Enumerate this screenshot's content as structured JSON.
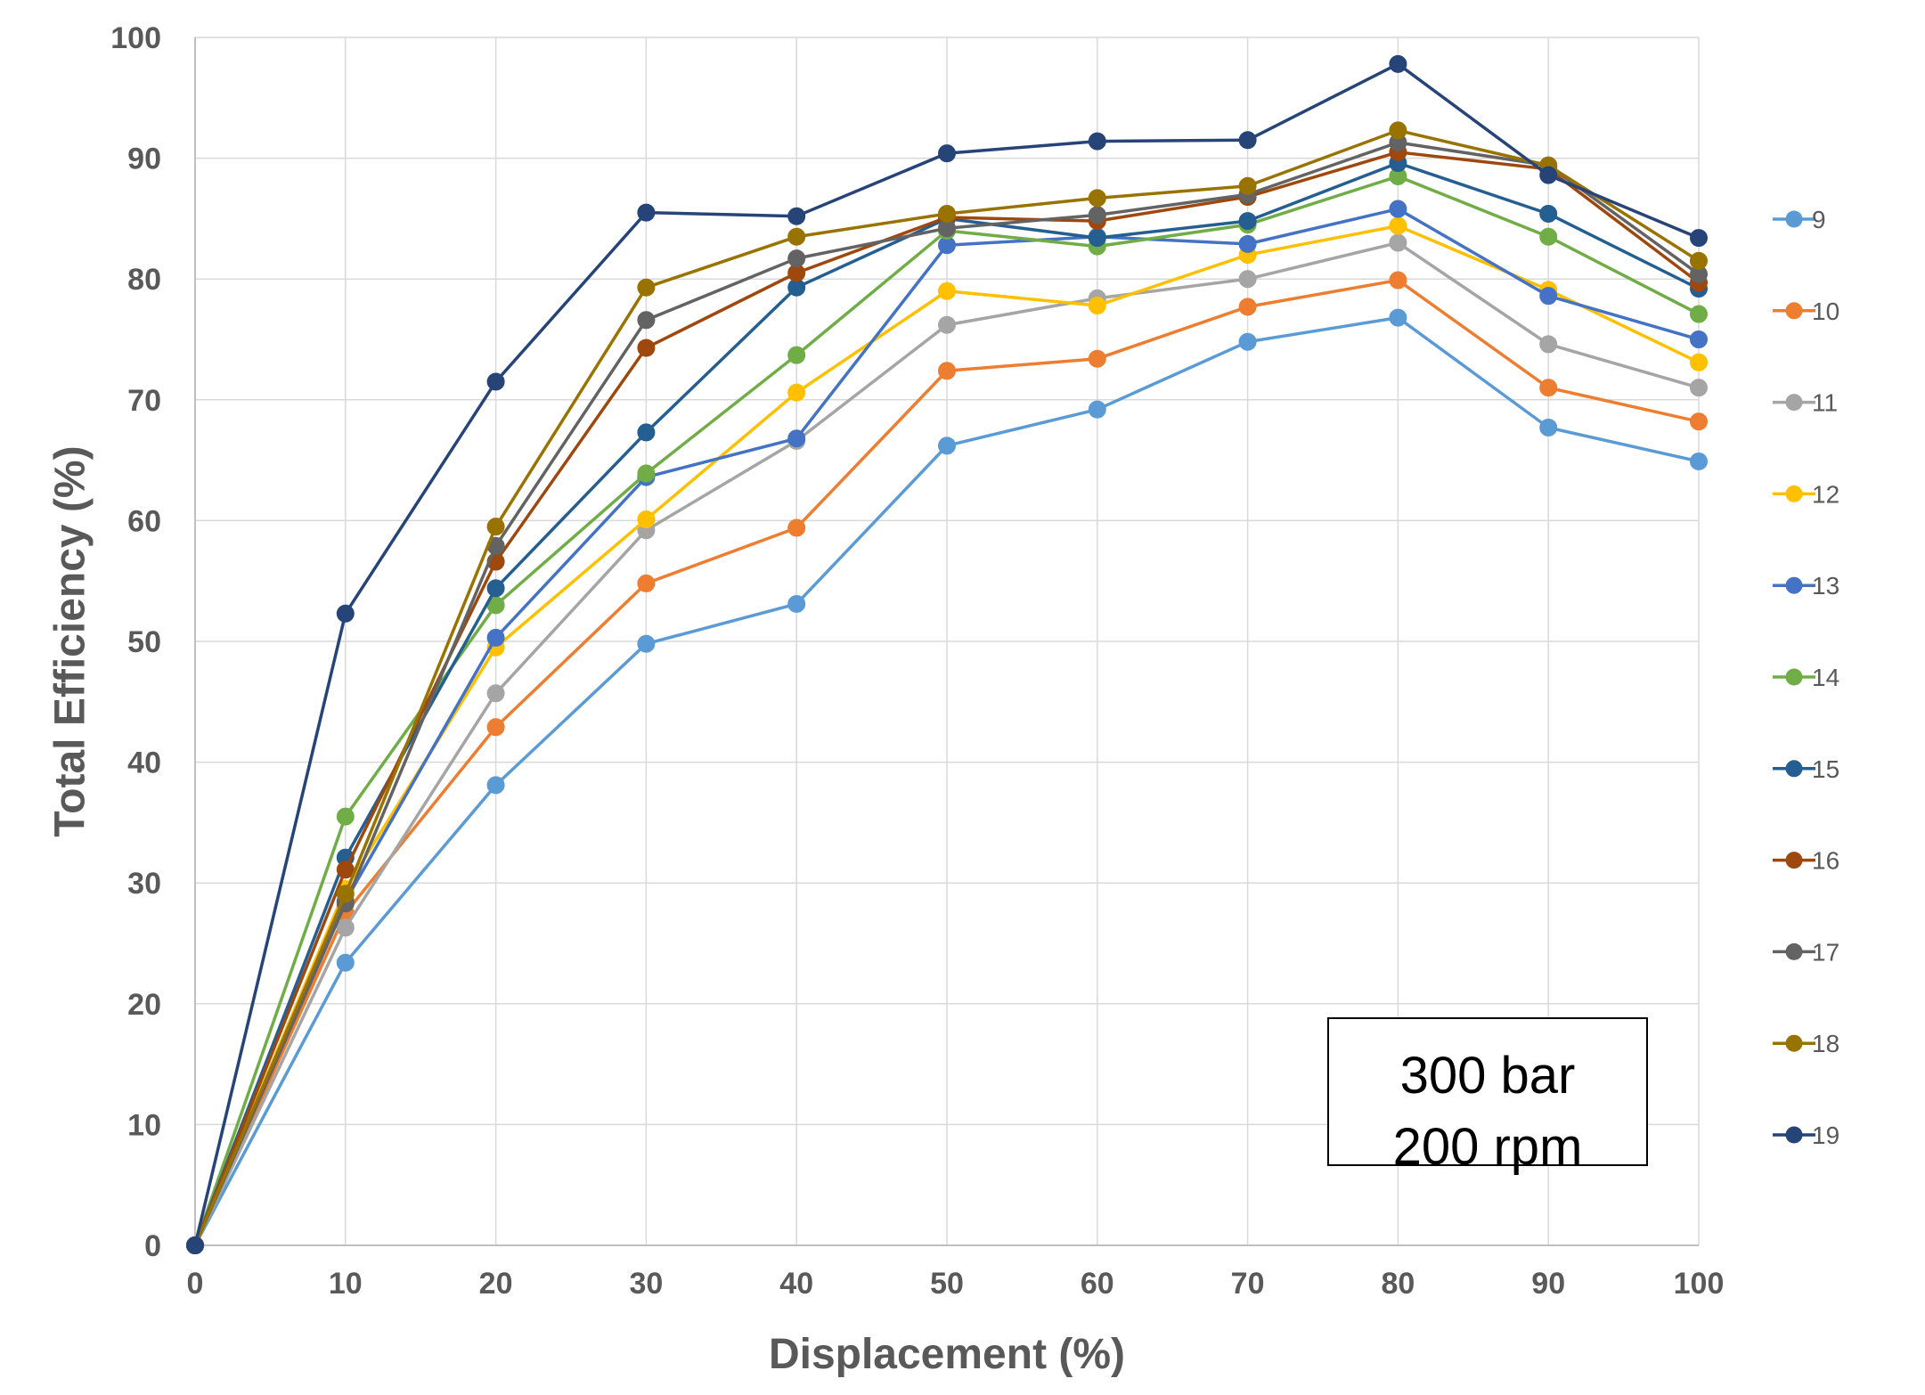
{
  "chart_data": {
    "type": "line",
    "xlabel": "Displacement (%)",
    "ylabel": "Total Efficiency (%)",
    "xlim": [
      0,
      100
    ],
    "ylim": [
      0,
      100
    ],
    "x_ticks": [
      0,
      10,
      20,
      30,
      40,
      50,
      60,
      70,
      80,
      90,
      100
    ],
    "y_ticks": [
      0,
      10,
      20,
      30,
      40,
      50,
      60,
      70,
      80,
      90,
      100
    ],
    "grid": true,
    "legend_position": "right",
    "x": [
      0,
      10,
      20,
      30,
      40,
      50,
      60,
      70,
      80,
      90,
      100
    ],
    "annotation": [
      "300 bar",
      "200 rpm"
    ],
    "series": [
      {
        "name": "9",
        "color": "#5B9BD5",
        "values": [
          0,
          23.4,
          38.1,
          49.8,
          53.1,
          66.2,
          69.2,
          74.8,
          76.8,
          67.7,
          64.9
        ]
      },
      {
        "name": "10",
        "color": "#ED7D31",
        "values": [
          0,
          27.5,
          42.9,
          54.8,
          59.4,
          72.4,
          73.4,
          77.7,
          79.9,
          71.0,
          68.2
        ]
      },
      {
        "name": "11",
        "color": "#A5A5A5",
        "values": [
          0,
          26.3,
          45.7,
          59.2,
          66.6,
          76.2,
          78.4,
          80.0,
          83.0,
          74.6,
          71.0
        ]
      },
      {
        "name": "12",
        "color": "#FFC000",
        "values": [
          0,
          29.5,
          49.5,
          60.1,
          70.6,
          79.0,
          77.8,
          82.0,
          84.4,
          79.1,
          73.1
        ]
      },
      {
        "name": "13",
        "color": "#4472C4",
        "values": [
          0,
          28.5,
          50.3,
          63.6,
          66.8,
          82.8,
          83.5,
          82.9,
          85.8,
          78.6,
          75.0
        ]
      },
      {
        "name": "14",
        "color": "#70AD47",
        "values": [
          0,
          35.5,
          53.0,
          63.9,
          73.7,
          84.0,
          82.7,
          84.5,
          88.5,
          83.5,
          77.1
        ]
      },
      {
        "name": "15",
        "color": "#255E91",
        "values": [
          0,
          32.1,
          54.4,
          67.3,
          79.3,
          85.0,
          83.4,
          84.8,
          89.6,
          85.4,
          79.2
        ]
      },
      {
        "name": "16",
        "color": "#9E480E",
        "values": [
          0,
          31.1,
          56.6,
          74.3,
          80.5,
          85.1,
          84.8,
          86.8,
          90.5,
          89.1,
          79.7
        ]
      },
      {
        "name": "17",
        "color": "#636363",
        "values": [
          0,
          28.3,
          57.9,
          76.6,
          81.7,
          84.2,
          85.3,
          87.0,
          91.3,
          89.4,
          80.4
        ]
      },
      {
        "name": "18",
        "color": "#997300",
        "values": [
          0,
          29.1,
          59.5,
          79.3,
          83.5,
          85.4,
          86.7,
          87.7,
          92.3,
          89.4,
          81.5
        ]
      },
      {
        "name": "19",
        "color": "#264478",
        "values": [
          0,
          52.3,
          71.5,
          85.5,
          85.2,
          90.4,
          91.4,
          91.5,
          97.8,
          88.6,
          83.4
        ]
      }
    ]
  }
}
